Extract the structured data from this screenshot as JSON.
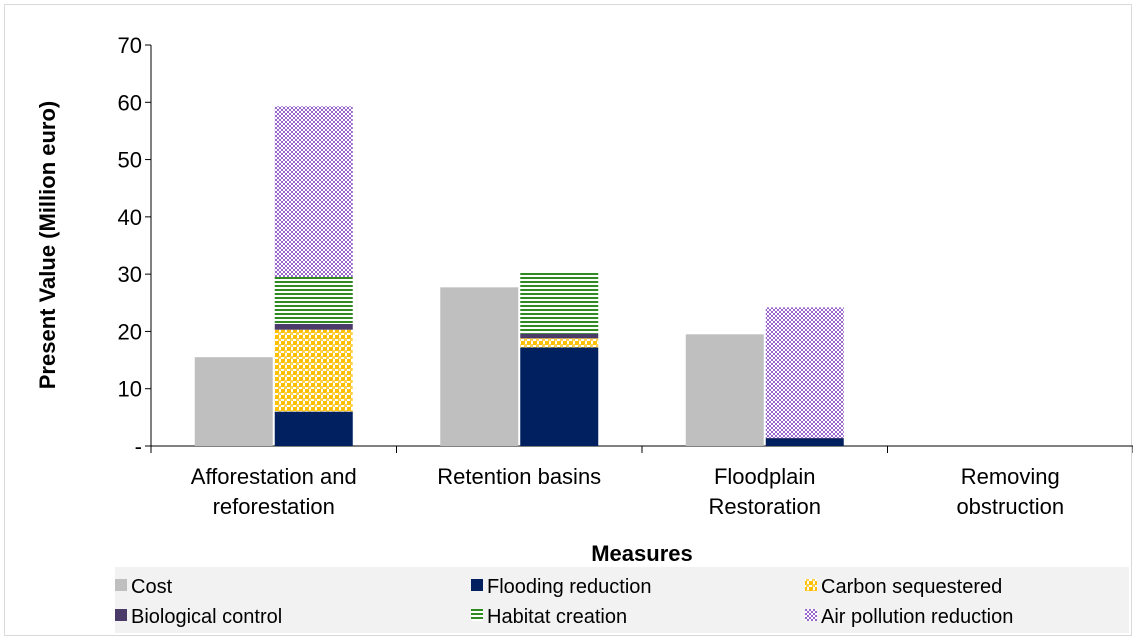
{
  "chart_data": {
    "type": "bar",
    "title": "",
    "xlabel": "Measures",
    "ylabel": "Present Value (Million euro)",
    "ylim": [
      0,
      70
    ],
    "yticks": [
      {
        "value": 0,
        "label": "-"
      },
      {
        "value": 10,
        "label": "10"
      },
      {
        "value": 20,
        "label": "20"
      },
      {
        "value": 30,
        "label": "30"
      },
      {
        "value": 40,
        "label": "40"
      },
      {
        "value": 50,
        "label": "50"
      },
      {
        "value": 60,
        "label": "60"
      },
      {
        "value": 70,
        "label": "70"
      }
    ],
    "categories": [
      [
        "Afforestation and",
        "reforestation"
      ],
      [
        "Retention basins"
      ],
      [
        "Floodplain",
        "Restoration"
      ],
      [
        "Removing",
        "obstruction"
      ]
    ],
    "cost": {
      "name": "Cost",
      "color": "#bfbfbf",
      "values": [
        15.5,
        27.7,
        19.5,
        0
      ]
    },
    "benefit_stack": [
      {
        "name": "Flooding reduction",
        "color": "#002060",
        "pattern": "solid",
        "values": [
          6.0,
          17.2,
          1.3,
          0
        ]
      },
      {
        "name": "Carbon sequestered",
        "color": "#ffc000",
        "pattern": "dots",
        "values": [
          14.3,
          1.6,
          0,
          0
        ]
      },
      {
        "name": "Biological control",
        "color": "#4b3b6b",
        "pattern": "solid",
        "values": [
          1.0,
          0.8,
          0.1,
          0
        ]
      },
      {
        "name": "Habitat creation",
        "color": "#2e8b1f",
        "pattern": "hlines",
        "values": [
          8.2,
          10.7,
          0,
          0
        ]
      },
      {
        "name": "Air pollution reduction",
        "color": "#9966cc",
        "pattern": "checker",
        "values": [
          29.8,
          0,
          22.8,
          0
        ]
      }
    ],
    "legend_order": [
      "Cost",
      "Flooding reduction",
      "Carbon sequestered",
      "Biological control",
      "Habitat creation",
      "Air pollution reduction"
    ],
    "legend_position": "bottom",
    "grid": false
  }
}
